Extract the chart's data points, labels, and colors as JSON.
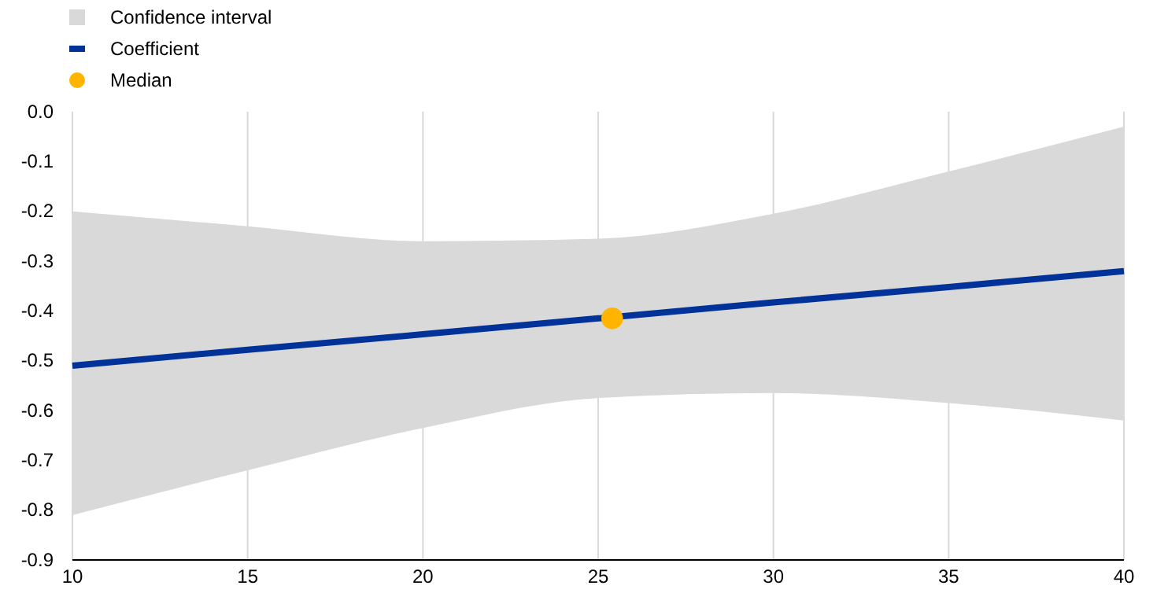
{
  "chart_data": {
    "type": "line",
    "xlim": [
      10,
      40
    ],
    "xticks": [
      10,
      15,
      20,
      25,
      30,
      35,
      40
    ],
    "ylim": [
      -0.9,
      0
    ],
    "yticks": [
      {
        "value": -0.9,
        "label": "-0.9"
      },
      {
        "value": -0.8,
        "label": "-0.8"
      },
      {
        "value": -0.7,
        "label": "-0.7"
      },
      {
        "value": -0.6,
        "label": "-0.6"
      },
      {
        "value": -0.5,
        "label": "-0.5"
      },
      {
        "value": -0.4,
        "label": "-0.4"
      },
      {
        "value": -0.3,
        "label": "-0.3"
      },
      {
        "value": -0.2,
        "label": "-0.2"
      },
      {
        "value": -0.1,
        "label": "-0.1"
      },
      {
        "value": 0,
        "label": "0.0"
      }
    ],
    "grid": "x",
    "legend": "top left",
    "annotations": [
      "Confidence interval"
    ],
    "series": [
      {
        "name": "Coefficient",
        "color": "#003299",
        "x": [
          10,
          15,
          20,
          25,
          30,
          35,
          40
        ],
        "values": [
          -0.51,
          -0.478,
          -0.447,
          -0.415,
          -0.383,
          -0.352,
          -0.32
        ],
        "lower": [
          -0.81,
          -0.72,
          -0.635,
          -0.575,
          -0.565,
          -0.585,
          -0.62
        ],
        "upper": [
          -0.2,
          -0.23,
          -0.26,
          -0.255,
          -0.205,
          -0.12,
          -0.03
        ]
      },
      {
        "type": "scatter",
        "name": "Median",
        "color": "#ffb400",
        "marker": "circle",
        "x": [
          25.4
        ],
        "values": [
          -0.415
        ]
      }
    ]
  }
}
